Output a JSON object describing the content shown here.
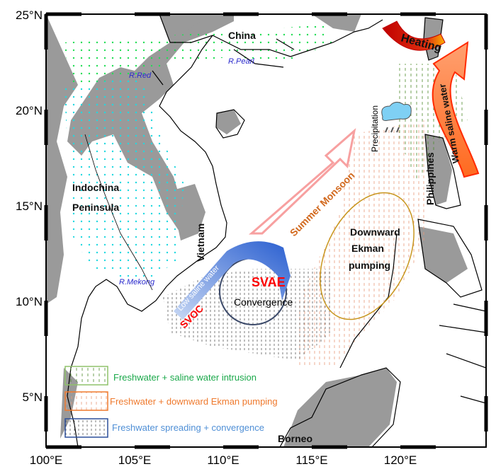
{
  "map": {
    "lat_ticks": [
      "25°N",
      "20°N",
      "15°N",
      "10°N",
      "5°N"
    ],
    "lon_ticks": [
      "100°E",
      "105°E",
      "110°E",
      "115°E",
      "120°E"
    ],
    "regions": {
      "china": "China",
      "indochina": "Indochina",
      "peninsula": "Peninsula",
      "vietnam": "Vietnam",
      "philippines": "Philippines",
      "borneo": "Borneo"
    },
    "rivers": {
      "red": "R.Red",
      "pearl": "R.Pearl",
      "mekong": "R.Mekong"
    },
    "annotations": {
      "heating": "Heating",
      "warm_saline": "Warm saline water",
      "precipitation": "Precipitation",
      "summer_monsoon": "Summer Monsoon",
      "ekman_1": "Downward",
      "ekman_2": "Ekman",
      "ekman_3": "pumping",
      "svae": "SVAE",
      "convergence": "Convergence",
      "svoc": "SVOC",
      "low_saline": "Low saline water"
    },
    "legend": [
      {
        "label": "Freshwater + saline water intrusion",
        "color": "#1aa84a",
        "box_color": "#8fc26a"
      },
      {
        "label": "Freshwater + downward Ekman  pumping",
        "color": "#ef7a2e",
        "box_color": "#ef7a2e"
      },
      {
        "label": "Freshwater spreading + convergence",
        "color": "#4f8fd6",
        "box_color": "#2c4f9a"
      }
    ],
    "colors": {
      "land_elevated": "#9a9a9a",
      "svae_text": "#ff0000",
      "monsoon_arrow": "#f7a0a0",
      "ekman_ellipse": "#c8961e",
      "svae_circle": "#3c4a6a",
      "low_saline_arrow": "#3a6fd8",
      "warm_arrow": "#ff5a1e"
    }
  }
}
